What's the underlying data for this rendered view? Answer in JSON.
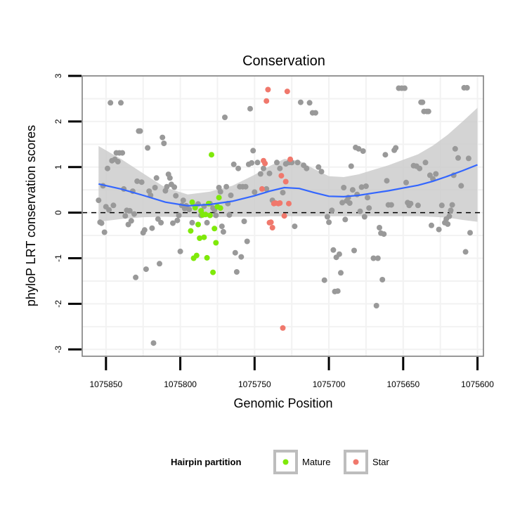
{
  "chart_data": {
    "type": "scatter",
    "title": "Conservation",
    "xlabel": "Genomic Position",
    "ylabel": "phyloP LRT conservation scores",
    "x_reversed": true,
    "xlim": [
      1075866,
      1075596
    ],
    "ylim": [
      -3.15,
      3.0
    ],
    "x_ticks": [
      1075850,
      1075800,
      1075750,
      1075700,
      1075650,
      1075600
    ],
    "x_tick_labels": [
      "1075850",
      "1075800",
      "1075750",
      "1075700",
      "1075650",
      "1075600"
    ],
    "y_ticks": [
      -3,
      -2,
      -1,
      0,
      1,
      2,
      3
    ],
    "y_tick_labels": [
      "-3",
      "-2",
      "-1",
      "0",
      "1",
      "2",
      "3"
    ],
    "reference_line": {
      "y": 0,
      "style": "dashed",
      "color": "#000000"
    },
    "grid": true,
    "colors": {
      "other": "#999999",
      "Mature": "#7FE90A",
      "Star": "#F0786C",
      "smooth": "#3366FF",
      "ribbon": "#CCCCCC",
      "panel_border": "#7F7F7F",
      "grid": "#F2F2F2"
    },
    "legend": {
      "title": "Hairpin partition",
      "position": "bottom",
      "entries": [
        {
          "label": "Mature",
          "color": "#7FE90A"
        },
        {
          "label": "Star",
          "color": "#F0786C"
        }
      ]
    },
    "smooth": {
      "x": [
        1075855,
        1075840,
        1075825,
        1075810,
        1075795,
        1075780,
        1075765,
        1075750,
        1075740,
        1075730,
        1075720,
        1075710,
        1075700,
        1075690,
        1075680,
        1075670,
        1075660,
        1075650,
        1075640,
        1075630,
        1075620,
        1075610,
        1075600
      ],
      "y": [
        0.63,
        0.52,
        0.38,
        0.23,
        0.15,
        0.18,
        0.25,
        0.37,
        0.47,
        0.55,
        0.53,
        0.44,
        0.36,
        0.35,
        0.38,
        0.43,
        0.48,
        0.54,
        0.6,
        0.69,
        0.8,
        0.92,
        1.05
      ],
      "lower": [
        0.83,
        0.66,
        0.48,
        0.32,
        0.25,
        0.28,
        0.34,
        0.46,
        0.55,
        0.63,
        0.61,
        0.52,
        0.44,
        0.43,
        0.46,
        0.51,
        0.56,
        0.62,
        0.68,
        0.78,
        0.91,
        1.08,
        1.25
      ],
      "upper": [
        0.83,
        0.66,
        0.48,
        0.32,
        0.25,
        0.28,
        0.34,
        0.46,
        0.55,
        0.63,
        0.61,
        0.52,
        0.44,
        0.43,
        0.46,
        0.51,
        0.56,
        0.62,
        0.68,
        0.78,
        0.91,
        1.08,
        1.25
      ]
    },
    "series": [
      {
        "name": "Other",
        "points": [
          [
            1075855,
            0.27
          ],
          [
            1075854,
            -0.21
          ],
          [
            1075853,
            -0.23
          ],
          [
            1075852,
            0.59
          ],
          [
            1075851,
            -0.43
          ],
          [
            1075850,
            0.13
          ],
          [
            1075849,
            0.97
          ],
          [
            1075848,
            0.06
          ],
          [
            1075847,
            2.41
          ],
          [
            1075846,
            1.14
          ],
          [
            1075845,
            0.16
          ],
          [
            1075844,
            1.17
          ],
          [
            1075843,
            1.31
          ],
          [
            1075842,
            1.12
          ],
          [
            1075841,
            1.31
          ],
          [
            1075840,
            2.41
          ],
          [
            1075839,
            1.31
          ],
          [
            1075838,
            0.52
          ],
          [
            1075837,
            -0.07
          ],
          [
            1075836,
            0.05
          ],
          [
            1075835,
            -0.26
          ],
          [
            1075834,
            0.04
          ],
          [
            1075833,
            -0.18
          ],
          [
            1075832,
            0.47
          ],
          [
            1075831,
            -0.03
          ],
          [
            1075830,
            -1.42
          ],
          [
            1075829,
            0.69
          ],
          [
            1075828,
            1.79
          ],
          [
            1075827,
            1.79
          ],
          [
            1075826,
            0.67
          ],
          [
            1075825,
            -0.44
          ],
          [
            1075824,
            -0.38
          ],
          [
            1075823,
            -1.24
          ],
          [
            1075822,
            1.42
          ],
          [
            1075821,
            0.47
          ],
          [
            1075820,
            0.38
          ],
          [
            1075819,
            -0.34
          ],
          [
            1075818,
            -2.86
          ],
          [
            1075817,
            0.55
          ],
          [
            1075816,
            0.76
          ],
          [
            1075815,
            -0.14
          ],
          [
            1075814,
            -1.12
          ],
          [
            1075813,
            -0.22
          ],
          [
            1075812,
            1.65
          ],
          [
            1075811,
            1.52
          ],
          [
            1075810,
            0.48
          ],
          [
            1075809,
            0.57
          ],
          [
            1075808,
            0.84
          ],
          [
            1075807,
            0.76
          ],
          [
            1075806,
            0.62
          ],
          [
            1075805,
            -0.23
          ],
          [
            1075804,
            0.56
          ],
          [
            1075803,
            0.37
          ],
          [
            1075802,
            -0.17
          ],
          [
            1075801,
            -0.06
          ],
          [
            1075800,
            -0.85
          ],
          [
            1075799,
            0.16
          ],
          [
            1075798,
            0.27
          ],
          [
            1075797,
            0.09
          ],
          [
            1075796,
            0.15
          ],
          [
            1075794,
            0.07
          ],
          [
            1075792,
            -0.22
          ],
          [
            1075790,
            0.14
          ],
          [
            1075788,
            0.19
          ],
          [
            1075786,
            -0.06
          ],
          [
            1075784,
            0.14
          ],
          [
            1075782,
            -0.22
          ],
          [
            1075780,
            0.2
          ],
          [
            1075778,
            0.1
          ],
          [
            1075777,
            0.06
          ],
          [
            1075776,
            -0.06
          ],
          [
            1075774,
            0.55
          ],
          [
            1075773,
            0.46
          ],
          [
            1075772,
            -0.3
          ],
          [
            1075771,
            -0.42
          ],
          [
            1075770,
            2.09
          ],
          [
            1075769,
            0.57
          ],
          [
            1075768,
            0.2
          ],
          [
            1075767,
            -0.05
          ],
          [
            1075766,
            0.38
          ],
          [
            1075764,
            1.06
          ],
          [
            1075763,
            -0.88
          ],
          [
            1075762,
            -1.3
          ],
          [
            1075761,
            0.97
          ],
          [
            1075760,
            0.57
          ],
          [
            1075759,
            -0.97
          ],
          [
            1075758,
            0.57
          ],
          [
            1075757,
            -0.19
          ],
          [
            1075756,
            0.57
          ],
          [
            1075755,
            -0.63
          ],
          [
            1075754,
            1.06
          ],
          [
            1075753,
            2.28
          ],
          [
            1075752,
            1.09
          ],
          [
            1075751,
            1.36
          ],
          [
            1075750,
            0.45
          ],
          [
            1075748,
            1.1
          ],
          [
            1075746,
            0.85
          ],
          [
            1075744,
            0.97
          ],
          [
            1075742,
            0.52
          ],
          [
            1075740,
            0.86
          ],
          [
            1075738,
            0.27
          ],
          [
            1075735,
            1.1
          ],
          [
            1075733,
            0.97
          ],
          [
            1075731,
            0.44
          ],
          [
            1075729,
            1.07
          ],
          [
            1075727,
            1.1
          ],
          [
            1075725,
            1.1
          ],
          [
            1075723,
            -0.3
          ],
          [
            1075721,
            1.1
          ],
          [
            1075719,
            2.42
          ],
          [
            1075717,
            1.04
          ],
          [
            1075715,
            0.97
          ],
          [
            1075713,
            2.41
          ],
          [
            1075711,
            2.19
          ],
          [
            1075709,
            2.19
          ],
          [
            1075707,
            1.0
          ],
          [
            1075705,
            0.9
          ],
          [
            1075703,
            -1.48
          ],
          [
            1075701,
            -0.09
          ],
          [
            1075700,
            -0.21
          ],
          [
            1075698,
            0.05
          ],
          [
            1075697,
            -0.82
          ],
          [
            1075696,
            -1.73
          ],
          [
            1075695,
            -0.98
          ],
          [
            1075694,
            -1.72
          ],
          [
            1075693,
            -0.91
          ],
          [
            1075692,
            -1.32
          ],
          [
            1075691,
            0.22
          ],
          [
            1075690,
            0.55
          ],
          [
            1075689,
            -0.15
          ],
          [
            1075688,
            0.26
          ],
          [
            1075687,
            0.33
          ],
          [
            1075686,
            0.21
          ],
          [
            1075685,
            1.02
          ],
          [
            1075684,
            0.5
          ],
          [
            1075683,
            -0.83
          ],
          [
            1075682,
            1.43
          ],
          [
            1075681,
            0.4
          ],
          [
            1075680,
            1.4
          ],
          [
            1075679,
            0.03
          ],
          [
            1075678,
            0.56
          ],
          [
            1075677,
            1.35
          ],
          [
            1075676,
            -0.09
          ],
          [
            1075675,
            0.58
          ],
          [
            1075674,
            0.33
          ],
          [
            1075673,
            0.1
          ],
          [
            1075670,
            -1.0
          ],
          [
            1075668,
            -2.04
          ],
          [
            1075667,
            -1.0
          ],
          [
            1075666,
            -0.33
          ],
          [
            1075665,
            -0.45
          ],
          [
            1075664,
            -1.47
          ],
          [
            1075663,
            -0.47
          ],
          [
            1075662,
            1.27
          ],
          [
            1075661,
            0.7
          ],
          [
            1075660,
            0.17
          ],
          [
            1075658,
            0.17
          ],
          [
            1075656,
            1.37
          ],
          [
            1075655,
            1.42
          ],
          [
            1075653,
            2.73
          ],
          [
            1075651,
            2.73
          ],
          [
            1075649,
            2.73
          ],
          [
            1075648,
            0.66
          ],
          [
            1075647,
            0.22
          ],
          [
            1075646,
            0.16
          ],
          [
            1075645,
            0.2
          ],
          [
            1075643,
            1.03
          ],
          [
            1075641,
            1.02
          ],
          [
            1075640,
            0.16
          ],
          [
            1075639,
            0.97
          ],
          [
            1075638,
            2.42
          ],
          [
            1075637,
            2.42
          ],
          [
            1075636,
            2.22
          ],
          [
            1075635,
            1.1
          ],
          [
            1075634,
            2.22
          ],
          [
            1075633,
            2.22
          ],
          [
            1075632,
            0.82
          ],
          [
            1075631,
            -0.28
          ],
          [
            1075630,
            0.74
          ],
          [
            1075628,
            0.85
          ],
          [
            1075626,
            -0.37
          ],
          [
            1075624,
            0.16
          ],
          [
            1075622,
            -0.22
          ],
          [
            1075621,
            -0.14
          ],
          [
            1075620,
            -0.25
          ],
          [
            1075619,
            -0.08
          ],
          [
            1075618,
            0.05
          ],
          [
            1075617,
            0.17
          ],
          [
            1075616,
            0.82
          ],
          [
            1075615,
            1.4
          ],
          [
            1075613,
            1.2
          ],
          [
            1075611,
            0.59
          ],
          [
            1075609,
            2.74
          ],
          [
            1075608,
            -0.86
          ],
          [
            1075607,
            2.74
          ],
          [
            1075606,
            1.19
          ],
          [
            1075605,
            -0.44
          ]
        ]
      },
      {
        "name": "Mature",
        "points": [
          [
            1075793,
            -0.4
          ],
          [
            1075792,
            0.23
          ],
          [
            1075791,
            -1.0
          ],
          [
            1075790,
            0.11
          ],
          [
            1075789,
            -0.94
          ],
          [
            1075788,
            -0.26
          ],
          [
            1075787,
            -0.56
          ],
          [
            1075786,
            0.04
          ],
          [
            1075785,
            -0.05
          ],
          [
            1075784,
            -0.54
          ],
          [
            1075783,
            -0.04
          ],
          [
            1075782,
            -0.99
          ],
          [
            1075781,
            0.2
          ],
          [
            1075780,
            -0.06
          ],
          [
            1075779,
            1.27
          ],
          [
            1075778,
            -1.31
          ],
          [
            1075777,
            -0.35
          ],
          [
            1075776,
            -0.66
          ],
          [
            1075775,
            0.13
          ],
          [
            1075774,
            0.33
          ],
          [
            1075773,
            0.1
          ]
        ]
      },
      {
        "name": "Star",
        "points": [
          [
            1075745,
            0.52
          ],
          [
            1075744,
            1.14
          ],
          [
            1075743,
            1.08
          ],
          [
            1075742,
            2.45
          ],
          [
            1075741,
            2.7
          ],
          [
            1075740,
            -0.22
          ],
          [
            1075739,
            -0.21
          ],
          [
            1075738,
            -0.33
          ],
          [
            1075737,
            0.2
          ],
          [
            1075736,
            0.21
          ],
          [
            1075734,
            0.2
          ],
          [
            1075733,
            0.21
          ],
          [
            1075732,
            0.81
          ],
          [
            1075731,
            -2.53
          ],
          [
            1075730,
            -0.07
          ],
          [
            1075729,
            0.68
          ],
          [
            1075728,
            2.66
          ],
          [
            1075727,
            0.2
          ],
          [
            1075726,
            1.17
          ]
        ]
      }
    ]
  }
}
